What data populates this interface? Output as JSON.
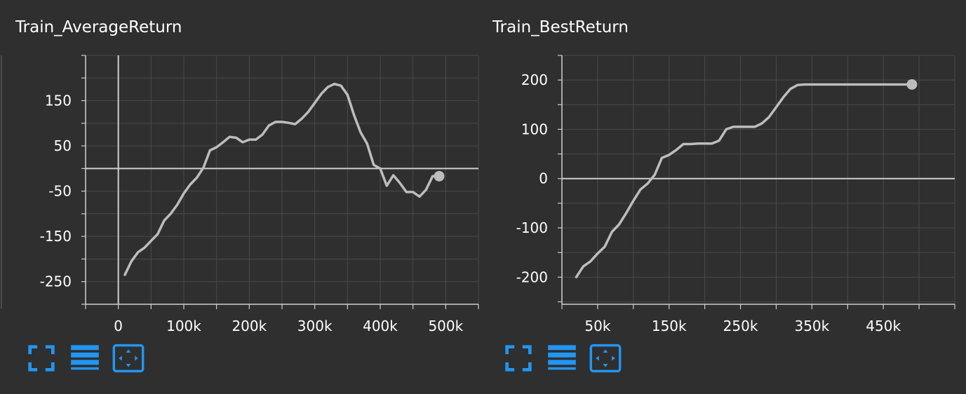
{
  "colors": {
    "background": "#2f2f2f",
    "line": "#bdbdbd",
    "axis": "#cfcfcf",
    "grid": "#4a4a4a",
    "accent": "#2196f3"
  },
  "toolbar": {
    "icons": [
      "fullscreen-icon",
      "data-table-icon",
      "fit-domain-icon"
    ]
  },
  "chart_data": [
    {
      "type": "line",
      "title": "Train_AverageReturn",
      "xlabel": "",
      "ylabel": "",
      "xlim": [
        -50000,
        550000
      ],
      "ylim": [
        -300,
        250
      ],
      "xticks": [
        0,
        100000,
        200000,
        300000,
        400000,
        500000
      ],
      "xtick_labels": [
        "0",
        "100k",
        "200k",
        "300k",
        "400k",
        "500k"
      ],
      "yticks": [
        150,
        50,
        -50,
        -150,
        -250
      ],
      "ytick_labels": [
        "150",
        "50",
        "-50",
        "-150",
        "-250"
      ],
      "grid": true,
      "series": [
        {
          "name": "",
          "x": [
            10000,
            20000,
            30000,
            40000,
            50000,
            60000,
            70000,
            80000,
            90000,
            100000,
            110000,
            120000,
            130000,
            140000,
            150000,
            160000,
            170000,
            180000,
            190000,
            200000,
            210000,
            220000,
            230000,
            240000,
            250000,
            260000,
            270000,
            280000,
            290000,
            300000,
            310000,
            320000,
            330000,
            340000,
            350000,
            360000,
            370000,
            380000,
            390000,
            400000,
            410000,
            420000,
            430000,
            440000,
            450000,
            460000,
            470000,
            480000,
            490000
          ],
          "y": [
            -235,
            -205,
            -185,
            -175,
            -160,
            -145,
            -115,
            -100,
            -80,
            -55,
            -35,
            -20,
            2,
            40,
            47,
            58,
            70,
            68,
            58,
            64,
            64,
            75,
            95,
            103,
            103,
            101,
            98,
            110,
            125,
            145,
            165,
            180,
            187,
            183,
            163,
            118,
            80,
            55,
            8,
            0,
            -38,
            -15,
            -32,
            -52,
            -52,
            -62,
            -47,
            -17,
            -17
          ]
        }
      ]
    },
    {
      "type": "line",
      "title": "Train_BestReturn",
      "xlabel": "",
      "ylabel": "",
      "xlim": [
        0,
        550000
      ],
      "ylim": [
        -255,
        250
      ],
      "xticks": [
        50000,
        150000,
        250000,
        350000,
        450000
      ],
      "xtick_labels": [
        "50k",
        "150k",
        "250k",
        "350k",
        "450k"
      ],
      "yticks": [
        200,
        100,
        0,
        -100,
        -200
      ],
      "ytick_labels": [
        "200",
        "100",
        "0",
        "-100",
        "-200"
      ],
      "grid": true,
      "series": [
        {
          "name": "",
          "x": [
            20000,
            30000,
            40000,
            50000,
            60000,
            70000,
            80000,
            90000,
            100000,
            110000,
            120000,
            130000,
            140000,
            150000,
            160000,
            170000,
            180000,
            190000,
            200000,
            210000,
            220000,
            230000,
            240000,
            250000,
            260000,
            270000,
            280000,
            290000,
            300000,
            310000,
            320000,
            330000,
            340000,
            350000,
            360000,
            370000,
            380000,
            390000,
            400000,
            410000,
            420000,
            430000,
            440000,
            450000,
            460000,
            470000,
            480000,
            490000
          ],
          "y": [
            -200,
            -178,
            -168,
            -152,
            -138,
            -108,
            -93,
            -70,
            -45,
            -22,
            -10,
            8,
            42,
            48,
            58,
            70,
            70,
            71,
            71,
            71,
            77,
            100,
            105,
            105,
            105,
            105,
            112,
            125,
            145,
            165,
            182,
            190,
            191,
            191,
            191,
            191,
            191,
            191,
            191,
            191,
            191,
            191,
            191,
            191,
            191,
            191,
            191,
            191
          ]
        }
      ]
    }
  ]
}
